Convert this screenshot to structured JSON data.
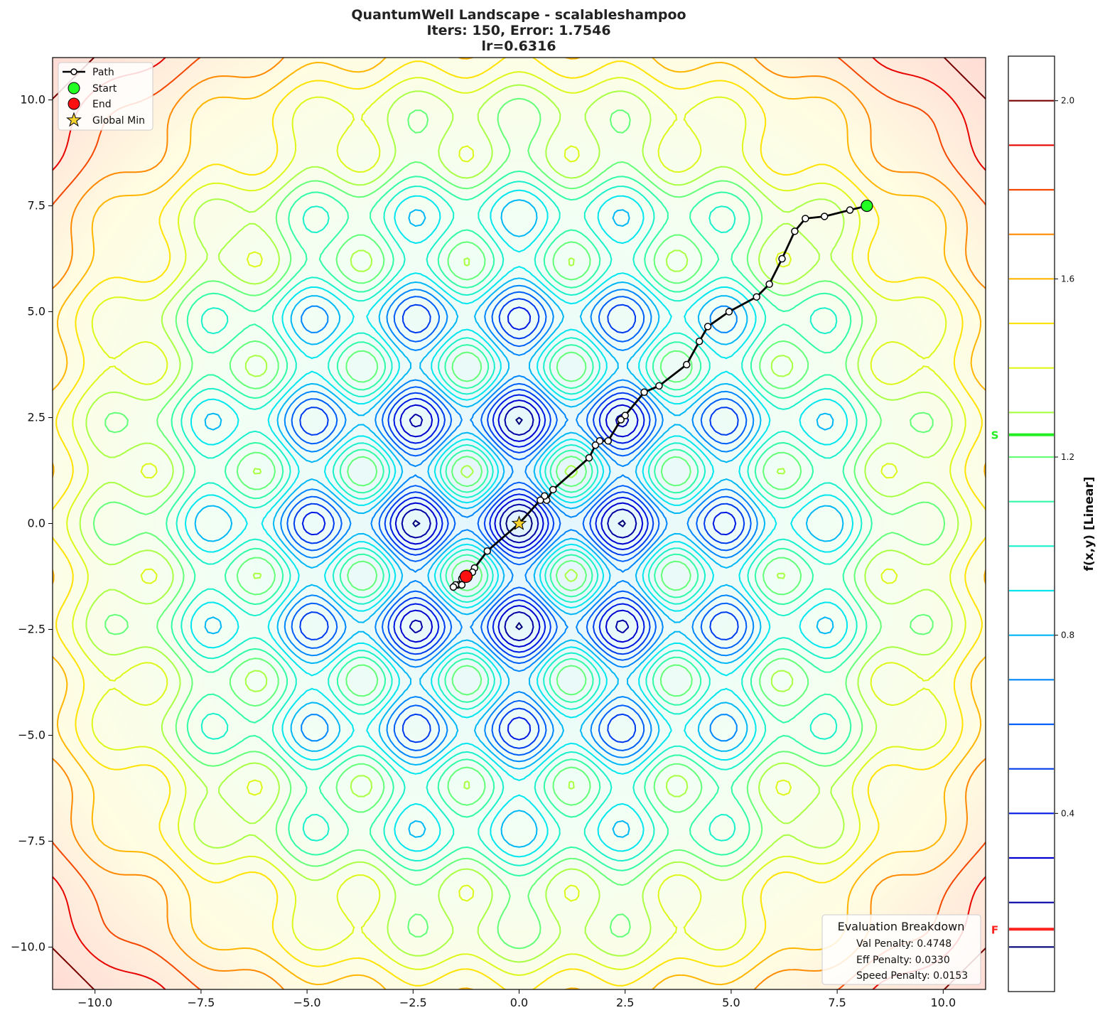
{
  "chart_data": {
    "type": "contour",
    "title_lines": [
      "QuantumWell Landscape - scalableshampoo",
      "Iters: 150, Error: 1.7546",
      "lr=0.6316"
    ],
    "xlim": [
      -11,
      11
    ],
    "ylim": [
      -11,
      11
    ],
    "x_ticks": [
      -10.0,
      -7.5,
      -5.0,
      -2.5,
      0.0,
      2.5,
      5.0,
      7.5,
      10.0
    ],
    "y_ticks": [
      -10.0,
      -7.5,
      -5.0,
      -2.5,
      0.0,
      2.5,
      5.0,
      7.5,
      10.0
    ],
    "x_tick_labels": [
      "−10.0",
      "−7.5",
      "−5.0",
      "−2.5",
      "0.0",
      "2.5",
      "5.0",
      "7.5",
      "10.0"
    ],
    "y_tick_labels": [
      "−10.0",
      "−7.5",
      "−5.0",
      "−2.5",
      "0.0",
      "2.5",
      "5.0",
      "7.5",
      "10.0"
    ],
    "path": {
      "name": "Path",
      "x": [
        8.2,
        7.8,
        7.2,
        6.75,
        6.5,
        6.2,
        5.9,
        5.6,
        4.95,
        4.45,
        4.25,
        3.95,
        3.3,
        2.95,
        2.5,
        2.4,
        2.1,
        1.9,
        1.8,
        1.65,
        0.8,
        0.65,
        0.6,
        0.5,
        0.0,
        -0.75,
        -1.05,
        -1.1,
        -1.2,
        -1.35,
        -1.45,
        -1.35,
        -1.5,
        -1.55,
        -1.25
      ],
      "y": [
        7.5,
        7.4,
        7.25,
        7.2,
        6.9,
        6.25,
        5.65,
        5.35,
        5.0,
        4.65,
        4.3,
        3.75,
        3.25,
        3.1,
        2.55,
        2.45,
        1.95,
        1.95,
        1.85,
        1.55,
        0.8,
        0.55,
        0.65,
        0.55,
        0.0,
        -0.65,
        -1.05,
        -1.15,
        -1.2,
        -1.3,
        -1.45,
        -1.45,
        -1.45,
        -1.5,
        -1.25
      ]
    },
    "start": {
      "name": "Start",
      "x": 8.2,
      "y": 7.5,
      "color": "#22ff22"
    },
    "end": {
      "name": "End",
      "x": -1.25,
      "y": -1.25,
      "color": "#ff1010"
    },
    "global_min": {
      "name": "Global Min",
      "x": 0.0,
      "y": 0.0,
      "color": "#f5d22e"
    },
    "legend_position": "upper-left",
    "colorbar": {
      "label": "f(x,y) [Linear]",
      "range": [
        0.0,
        2.1
      ],
      "tick_values": [
        0.4,
        0.8,
        1.2,
        1.6,
        2.0
      ],
      "tick_labels": [
        "0.4",
        "0.8",
        "1.2",
        "1.6",
        "2.0"
      ],
      "start_marker": {
        "label": "S",
        "value": 1.25,
        "color": "#22ee22"
      },
      "end_marker": {
        "label": "F",
        "value": 0.14,
        "color": "#ff2020"
      }
    }
  },
  "evaluation": {
    "title": "Evaluation Breakdown",
    "lines": [
      "Val Penalty: 0.4748",
      "Eff Penalty: 0.0330",
      "Speed Penalty: 0.0153"
    ]
  }
}
